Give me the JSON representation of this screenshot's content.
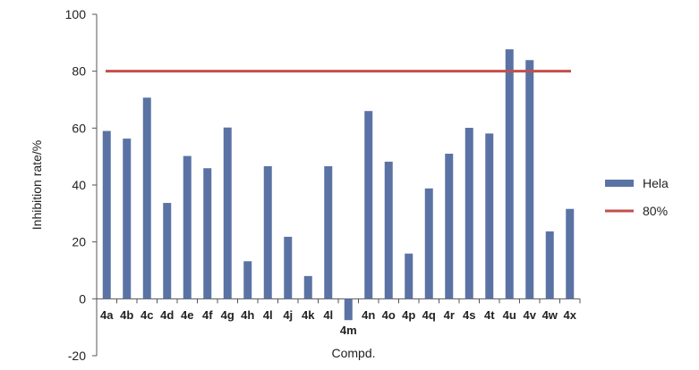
{
  "chart_data": {
    "type": "bar",
    "categories": [
      "4a",
      "4b",
      "4c",
      "4d",
      "4e",
      "4f",
      "4g",
      "4h",
      "4l",
      "4j",
      "4k",
      "4l",
      "4m",
      "4n",
      "4o",
      "4p",
      "4q",
      "4r",
      "4s",
      "4t",
      "4u",
      "4v",
      "4w",
      "4x"
    ],
    "series": [
      {
        "name": "Hela",
        "color": "#5a73a4",
        "values": [
          59,
          56.3,
          70.7,
          33.7,
          50.2,
          45.9,
          60.2,
          13.2,
          46.6,
          21.8,
          8,
          46.6,
          -7.5,
          66,
          48.2,
          15.9,
          38.8,
          51,
          60.1,
          58.1,
          87.7,
          83.9,
          23.7,
          31.6
        ]
      }
    ],
    "reference_line": {
      "name": "80%",
      "value": 80,
      "color": "#c0504d"
    },
    "xlabel": "Compd.",
    "ylabel": "Inhibition rate/%",
    "ylim": [
      -20,
      100
    ],
    "yticks": [
      -20,
      0,
      20,
      40,
      60,
      80,
      100
    ],
    "grid": false,
    "legend_position": "right"
  }
}
